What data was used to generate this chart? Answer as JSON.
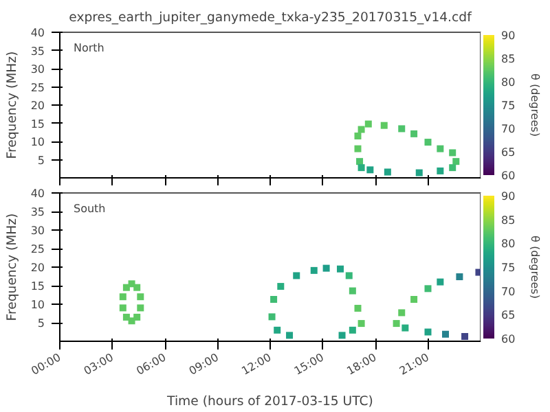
{
  "chart_data": [
    {
      "type": "scatter",
      "title": "expres_earth_jupiter_ganymede_txka-y235_20170315_v14.cdf",
      "ylabel": "Frequency (MHz)",
      "annotations": [
        "North"
      ],
      "marker": "square",
      "tick_labels": "y",
      "xlim": [
        0,
        24
      ],
      "xticks": [
        {
          "value": 0,
          "label": null
        },
        {
          "value": 3,
          "label": null
        },
        {
          "value": 6,
          "label": null
        },
        {
          "value": 9,
          "label": null
        },
        {
          "value": 12,
          "label": null
        },
        {
          "value": 15,
          "label": null
        },
        {
          "value": 18,
          "label": null
        },
        {
          "value": 21,
          "label": null
        }
      ],
      "ylim": [
        0,
        40
      ],
      "yticks": [
        5,
        10,
        15,
        20,
        25,
        30,
        35,
        40
      ],
      "clim": [
        60,
        90
      ],
      "cticks": [
        60,
        65,
        70,
        75,
        80,
        85,
        90
      ],
      "clabel": "θ (degrees)",
      "series": [
        {
          "x": [
            17.1,
            17.0,
            17.0,
            17.2,
            17.6,
            18.5,
            19.5,
            20.2,
            21.0,
            21.7,
            22.4,
            22.6,
            22.4,
            21.7,
            20.5,
            18.7,
            17.7,
            17.2
          ],
          "values": [
            4.5,
            8.0,
            11.5,
            13.3,
            14.8,
            14.4,
            13.5,
            12.1,
            9.8,
            8.0,
            6.9,
            4.5,
            2.8,
            1.9,
            1.4,
            1.6,
            2.2,
            2.8
          ],
          "colors": [
            "#4ec36b",
            "#5ec962",
            "#5ec962",
            "#5ec962",
            "#5ec962",
            "#5ec962",
            "#4ec36b",
            "#4ec36b",
            "#4ec36b",
            "#4ec36b",
            "#4ec36b",
            "#4ec36b",
            "#3fbc73",
            "#22a884",
            "#20a386",
            "#20a386",
            "#20a386",
            "#28ae80"
          ]
        }
      ]
    },
    {
      "type": "scatter",
      "ylabel": "Frequency (MHz)",
      "xlabel": "Time (hours of 2017-03-15 UTC)",
      "annotations": [
        "South"
      ],
      "marker": "square",
      "xlim": [
        0,
        24
      ],
      "xticks": [
        {
          "value": 0,
          "label": "00:00"
        },
        {
          "value": 3,
          "label": "03:00"
        },
        {
          "value": 6,
          "label": "06:00"
        },
        {
          "value": 9,
          "label": "09:00"
        },
        {
          "value": 12,
          "label": "12:00"
        },
        {
          "value": 15,
          "label": "15:00"
        },
        {
          "value": 18,
          "label": "18:00"
        },
        {
          "value": 21,
          "label": "21:00"
        }
      ],
      "ylim": [
        0,
        40
      ],
      "yticks": [
        5,
        10,
        15,
        20,
        25,
        30,
        35,
        40
      ],
      "clim": [
        60,
        90
      ],
      "cticks": [
        60,
        65,
        70,
        75,
        80,
        85,
        90
      ],
      "clabel": "θ (degrees)",
      "series": [
        {
          "x": [
            4.1,
            4.4,
            4.6,
            4.6,
            4.4,
            4.1,
            3.8,
            3.6,
            3.6,
            3.8
          ],
          "values": [
            15.5,
            14.5,
            12.0,
            9.0,
            6.5,
            5.5,
            6.5,
            9.0,
            12.0,
            14.5
          ],
          "colors": [
            "#5ec962",
            "#5ec962",
            "#5ec962",
            "#5ec962",
            "#5ec962",
            "#5ec962",
            "#5ec962",
            "#5ec962",
            "#5ec962",
            "#5ec962"
          ]
        },
        {
          "x": [
            13.1,
            12.4,
            12.1,
            12.2,
            12.6,
            13.5,
            14.5,
            15.2,
            16.0,
            16.5,
            16.7,
            17.0,
            17.2,
            16.7,
            16.1
          ],
          "values": [
            1.6,
            3.0,
            6.6,
            11.3,
            14.8,
            17.7,
            19.1,
            19.7,
            19.5,
            17.7,
            13.6,
            8.9,
            4.8,
            3.0,
            1.6
          ],
          "colors": [
            "#20a386",
            "#22a884",
            "#3fbc73",
            "#3fbc73",
            "#28ae80",
            "#20a386",
            "#20a386",
            "#1f9e89",
            "#20a386",
            "#35b779",
            "#4ec36b",
            "#5ec962",
            "#5ec962",
            "#28ae80",
            "#20a386"
          ]
        },
        {
          "x": [
            19.2,
            19.5,
            20.2,
            21.0,
            21.7,
            22.8,
            23.9,
            19.7,
            21.0,
            22.0,
            23.1
          ],
          "values": [
            4.8,
            7.7,
            11.3,
            14.2,
            16.0,
            17.4,
            18.6,
            3.6,
            2.5,
            1.9,
            1.3
          ],
          "colors": [
            "#5ec962",
            "#5ec962",
            "#5ec962",
            "#3fbc73",
            "#20a386",
            "#26828e",
            "#414487",
            "#28ae80",
            "#20a386",
            "#26828e",
            "#414487"
          ]
        }
      ]
    }
  ]
}
